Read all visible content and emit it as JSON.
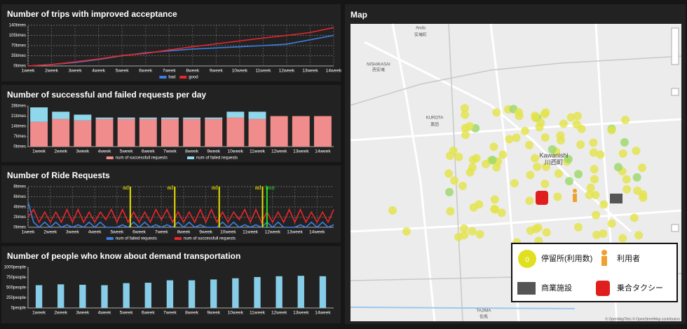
{
  "chart_data": [
    {
      "type": "line",
      "title": "Number of trips with improved acceptance",
      "categories": [
        "1week",
        "2week",
        "3week",
        "4week",
        "5week",
        "6week",
        "7week",
        "8week",
        "9week",
        "10week",
        "11week",
        "12week",
        "13week",
        "14week"
      ],
      "series": [
        {
          "name": "bad",
          "color": "#3b7fe0",
          "values": [
            0,
            5,
            12,
            22,
            35,
            45,
            52,
            58,
            62,
            66,
            70,
            75,
            90,
            105
          ]
        },
        {
          "name": "good",
          "color": "#e8262b",
          "values": [
            0,
            5,
            14,
            24,
            36,
            43,
            55,
            66,
            76,
            86,
            96,
            105,
            115,
            132
          ]
        }
      ],
      "ylim": [
        0,
        140
      ],
      "yticks": [
        {
          "value": 0,
          "label": "0times"
        },
        {
          "value": 35,
          "label": "35times"
        },
        {
          "value": 70,
          "label": "70times"
        },
        {
          "value": 105,
          "label": "105times"
        },
        {
          "value": 140,
          "label": "140times"
        }
      ],
      "grid": true
    },
    {
      "type": "stacked_bar",
      "title": "Number of successful and failed requests per day",
      "categories": [
        "1week",
        "2week",
        "3week",
        "4week",
        "5week",
        "6week",
        "7week",
        "8week",
        "9week",
        "10week",
        "11week",
        "12week",
        "13week",
        "14week"
      ],
      "series": [
        {
          "name": "num of successfull requests",
          "color": "#f08c8c",
          "values": [
            17,
            19,
            18,
            19,
            19,
            19,
            19,
            19,
            19,
            20,
            19,
            21,
            21,
            21
          ]
        },
        {
          "name": "num of failed requests",
          "color": "#8fd8ec",
          "values": [
            10,
            5,
            4,
            1,
            1,
            1,
            1,
            1,
            1,
            4,
            5,
            0,
            0,
            0
          ]
        }
      ],
      "ylim": [
        0,
        28
      ],
      "yticks": [
        {
          "value": 0,
          "label": "0times"
        },
        {
          "value": 7,
          "label": "7times"
        },
        {
          "value": 14,
          "label": "14times"
        },
        {
          "value": 21,
          "label": "21times"
        },
        {
          "value": 28,
          "label": "28times"
        }
      ],
      "grid": false
    },
    {
      "type": "line",
      "title": "Number of Ride Requests",
      "x": [
        1,
        1.25,
        1.5,
        1.75,
        2,
        2.25,
        2.5,
        2.75,
        3,
        3.25,
        3.5,
        3.75,
        4,
        4.25,
        4.5,
        4.75,
        5,
        5.25,
        5.5,
        5.75,
        6,
        6.25,
        6.5,
        6.75,
        7,
        7.25,
        7.5,
        7.75,
        8,
        8.25,
        8.5,
        8.75,
        9,
        9.25,
        9.5,
        9.75,
        10,
        10.25,
        10.5,
        10.75,
        11,
        11.25,
        11.5,
        11.75,
        12,
        12.25,
        12.5,
        12.75,
        13,
        13.25,
        13.5,
        13.75,
        14,
        14.25,
        14.5,
        14.75
      ],
      "series": [
        {
          "name": "num of failed requests",
          "color": "#3b7fe0",
          "values": [
            5,
            1,
            0,
            1,
            0,
            1,
            0,
            0.5,
            0,
            0.5,
            0,
            1,
            0,
            1,
            0,
            0,
            0,
            0.5,
            0,
            1,
            0,
            1,
            0,
            0.5,
            0,
            0.5,
            0,
            1,
            0,
            1,
            0,
            0.5,
            0,
            0,
            0,
            1,
            0,
            1,
            0,
            0.5,
            0,
            0.5,
            0,
            1,
            0,
            1,
            0,
            0,
            0,
            0.5,
            0,
            1,
            0,
            1,
            0,
            0.5
          ]
        },
        {
          "name": "num of successfull requests",
          "color": "#e8262b",
          "values": [
            2,
            3.5,
            1,
            3,
            1,
            3,
            1,
            3.5,
            1,
            3.5,
            1,
            3,
            1,
            3,
            1.5,
            3.5,
            1,
            3.5,
            1,
            3,
            1,
            3,
            1,
            3.5,
            1.5,
            3.5,
            1,
            3,
            1,
            3,
            1,
            3.5,
            1,
            3.5,
            1,
            3,
            1,
            3,
            1.5,
            3.5,
            1,
            3.5,
            1,
            3,
            1,
            3,
            1,
            3.5,
            1,
            3.5,
            1,
            3,
            1,
            3,
            1,
            3.5
          ]
        }
      ],
      "xlim": [
        1,
        14.75
      ],
      "xticks": [
        {
          "value": 1,
          "label": "1week"
        },
        {
          "value": 2,
          "label": "2week"
        },
        {
          "value": 3,
          "label": "3week"
        },
        {
          "value": 4,
          "label": "4week"
        },
        {
          "value": 5,
          "label": "5week"
        },
        {
          "value": 6,
          "label": "6week"
        },
        {
          "value": 7,
          "label": "7week"
        },
        {
          "value": 8,
          "label": "8week"
        },
        {
          "value": 9,
          "label": "9week"
        },
        {
          "value": 10,
          "label": "10week"
        },
        {
          "value": 11,
          "label": "11week"
        },
        {
          "value": 12,
          "label": "12week"
        },
        {
          "value": 13,
          "label": "13week"
        },
        {
          "value": 14,
          "label": "14week"
        }
      ],
      "ylim": [
        0,
        8
      ],
      "yticks": [
        {
          "value": 0,
          "label": "0times"
        },
        {
          "value": 2,
          "label": "2times"
        },
        {
          "value": 4,
          "label": "4times"
        },
        {
          "value": 6,
          "label": "6times"
        },
        {
          "value": 8,
          "label": "8times"
        }
      ],
      "grid": true,
      "annotations": [
        {
          "text": "ad",
          "x": 5.6,
          "color": "#e8e000"
        },
        {
          "text": "ad",
          "x": 7.6,
          "color": "#e8e000"
        },
        {
          "text": "ad",
          "x": 9.6,
          "color": "#e8e000"
        },
        {
          "text": "ad",
          "x": 11.55,
          "color": "#e8e000"
        },
        {
          "text": "bus",
          "x": 11.75,
          "color": "#22dd22"
        }
      ]
    },
    {
      "type": "bar",
      "title": "Number of people who know about demand transportation",
      "categories": [
        "1week",
        "2week",
        "3week",
        "4week",
        "5week",
        "6week",
        "7week",
        "8week",
        "9week",
        "10week",
        "11week",
        "12week",
        "13week",
        "14week"
      ],
      "values": [
        560,
        580,
        570,
        560,
        610,
        620,
        680,
        680,
        700,
        730,
        760,
        780,
        790,
        780
      ],
      "color": "#87cde8",
      "ylim": [
        0,
        1000
      ],
      "yticks": [
        {
          "value": 0,
          "label": "0people"
        },
        {
          "value": 250,
          "label": "250people"
        },
        {
          "value": 500,
          "label": "500people"
        },
        {
          "value": 750,
          "label": "750people"
        },
        {
          "value": 1000,
          "label": "1000people"
        }
      ],
      "grid": false
    }
  ],
  "map": {
    "title": "Map",
    "places": [
      "Ando",
      "安堵町",
      "Kawanishi",
      "川西町",
      "KUROTA",
      "黒田",
      "TAJIMA",
      "但馬",
      "NISHIKASAI",
      "西安堵"
    ],
    "legend": [
      {
        "label": "停留所(利用数)",
        "badge": "0"
      },
      {
        "label": "利用者"
      },
      {
        "label": "商業施設"
      },
      {
        "label": "乗合タクシー"
      }
    ],
    "attribution": "© OpenMapTiles © OpenStreetMap contributors"
  }
}
